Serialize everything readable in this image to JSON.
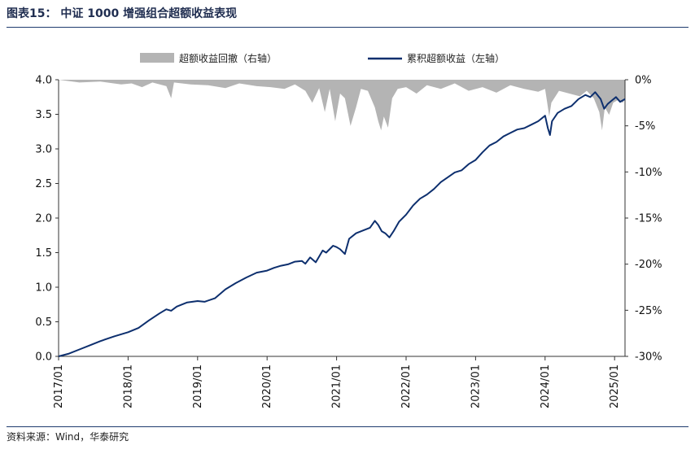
{
  "header": {
    "title": "图表15：  中证 1000 增强组合超额收益表现"
  },
  "footer": {
    "source": "资料来源：Wind，华泰研究"
  },
  "colors": {
    "line": "#0d2f6e",
    "drawdown": "#b4b4b4",
    "title": "#1f2d50",
    "rule": "#1f3a6e"
  },
  "chart_data": {
    "type": "line",
    "legend_placement": "top",
    "grid": false,
    "x_ticks": [
      "2017/01",
      "2018/01",
      "2019/01",
      "2020/01",
      "2021/01",
      "2022/01",
      "2023/01",
      "2024/01",
      "2025/01"
    ],
    "x_range": [
      2017.0,
      2025.15
    ],
    "y_left": {
      "ticks": [
        "0.0",
        "0.5",
        "1.0",
        "1.5",
        "2.0",
        "2.5",
        "3.0",
        "3.5",
        "4.0"
      ],
      "range": [
        0,
        4.0
      ]
    },
    "y_right": {
      "ticks": [
        "0%",
        "-5%",
        "-10%",
        "-15%",
        "-20%",
        "-25%",
        "-30%"
      ],
      "range": [
        -30,
        0
      ]
    },
    "series": [
      {
        "name": "超额收益回撤（右轴）",
        "kind": "area",
        "axis": "right",
        "points": [
          [
            2017.0,
            0
          ],
          [
            2017.3,
            -0.3
          ],
          [
            2017.6,
            -0.2
          ],
          [
            2017.9,
            -0.5
          ],
          [
            2018.05,
            -0.4
          ],
          [
            2018.2,
            -0.8
          ],
          [
            2018.35,
            -0.3
          ],
          [
            2018.55,
            -0.7
          ],
          [
            2018.62,
            -2.0
          ],
          [
            2018.66,
            -0.3
          ],
          [
            2018.9,
            -0.5
          ],
          [
            2019.15,
            -0.6
          ],
          [
            2019.4,
            -0.9
          ],
          [
            2019.6,
            -0.4
          ],
          [
            2019.85,
            -0.7
          ],
          [
            2020.05,
            -0.8
          ],
          [
            2020.25,
            -1.0
          ],
          [
            2020.4,
            -0.5
          ],
          [
            2020.55,
            -1.2
          ],
          [
            2020.65,
            -2.5
          ],
          [
            2020.75,
            -0.9
          ],
          [
            2020.83,
            -3.5
          ],
          [
            2020.9,
            -1.0
          ],
          [
            2020.98,
            -4.5
          ],
          [
            2021.05,
            -1.5
          ],
          [
            2021.12,
            -2.0
          ],
          [
            2021.2,
            -5.0
          ],
          [
            2021.28,
            -3.0
          ],
          [
            2021.35,
            -1.0
          ],
          [
            2021.45,
            -1.2
          ],
          [
            2021.55,
            -3.0
          ],
          [
            2021.6,
            -4.5
          ],
          [
            2021.64,
            -5.5
          ],
          [
            2021.68,
            -4.0
          ],
          [
            2021.74,
            -5.2
          ],
          [
            2021.8,
            -2.0
          ],
          [
            2021.88,
            -1.0
          ],
          [
            2022.0,
            -0.8
          ],
          [
            2022.15,
            -1.5
          ],
          [
            2022.3,
            -0.6
          ],
          [
            2022.5,
            -1.0
          ],
          [
            2022.7,
            -0.4
          ],
          [
            2022.9,
            -1.2
          ],
          [
            2023.1,
            -0.8
          ],
          [
            2023.3,
            -1.4
          ],
          [
            2023.5,
            -0.6
          ],
          [
            2023.7,
            -1.0
          ],
          [
            2023.9,
            -1.3
          ],
          [
            2024.0,
            -1.0
          ],
          [
            2024.03,
            -2.5
          ],
          [
            2024.06,
            -4.0
          ],
          [
            2024.09,
            -2.5
          ],
          [
            2024.2,
            -1.2
          ],
          [
            2024.35,
            -1.5
          ],
          [
            2024.5,
            -1.8
          ],
          [
            2024.6,
            -1.2
          ],
          [
            2024.7,
            -2.0
          ],
          [
            2024.78,
            -3.5
          ],
          [
            2024.82,
            -5.5
          ],
          [
            2024.86,
            -3.0
          ],
          [
            2024.92,
            -3.8
          ],
          [
            2024.98,
            -2.5
          ],
          [
            2025.05,
            -2.2
          ],
          [
            2025.12,
            -2.5
          ],
          [
            2025.15,
            -2.0
          ]
        ]
      },
      {
        "name": "累积超额收益（左轴）",
        "kind": "line",
        "axis": "left",
        "points": [
          [
            2017.0,
            0.0
          ],
          [
            2017.15,
            0.04
          ],
          [
            2017.3,
            0.1
          ],
          [
            2017.45,
            0.16
          ],
          [
            2017.6,
            0.22
          ],
          [
            2017.8,
            0.29
          ],
          [
            2018.0,
            0.35
          ],
          [
            2018.15,
            0.41
          ],
          [
            2018.3,
            0.52
          ],
          [
            2018.45,
            0.62
          ],
          [
            2018.55,
            0.68
          ],
          [
            2018.62,
            0.66
          ],
          [
            2018.7,
            0.72
          ],
          [
            2018.85,
            0.78
          ],
          [
            2019.0,
            0.8
          ],
          [
            2019.1,
            0.79
          ],
          [
            2019.25,
            0.84
          ],
          [
            2019.4,
            0.97
          ],
          [
            2019.55,
            1.06
          ],
          [
            2019.7,
            1.14
          ],
          [
            2019.85,
            1.21
          ],
          [
            2020.0,
            1.24
          ],
          [
            2020.1,
            1.28
          ],
          [
            2020.2,
            1.31
          ],
          [
            2020.3,
            1.33
          ],
          [
            2020.4,
            1.37
          ],
          [
            2020.5,
            1.38
          ],
          [
            2020.55,
            1.34
          ],
          [
            2020.62,
            1.43
          ],
          [
            2020.7,
            1.36
          ],
          [
            2020.8,
            1.53
          ],
          [
            2020.85,
            1.5
          ],
          [
            2020.95,
            1.6
          ],
          [
            2021.0,
            1.58
          ],
          [
            2021.05,
            1.55
          ],
          [
            2021.12,
            1.48
          ],
          [
            2021.18,
            1.7
          ],
          [
            2021.28,
            1.78
          ],
          [
            2021.38,
            1.82
          ],
          [
            2021.48,
            1.86
          ],
          [
            2021.55,
            1.96
          ],
          [
            2021.6,
            1.9
          ],
          [
            2021.65,
            1.81
          ],
          [
            2021.7,
            1.78
          ],
          [
            2021.76,
            1.72
          ],
          [
            2021.82,
            1.81
          ],
          [
            2021.9,
            1.95
          ],
          [
            2022.0,
            2.05
          ],
          [
            2022.1,
            2.18
          ],
          [
            2022.2,
            2.28
          ],
          [
            2022.3,
            2.34
          ],
          [
            2022.4,
            2.42
          ],
          [
            2022.5,
            2.52
          ],
          [
            2022.6,
            2.59
          ],
          [
            2022.7,
            2.66
          ],
          [
            2022.8,
            2.69
          ],
          [
            2022.9,
            2.78
          ],
          [
            2023.0,
            2.84
          ],
          [
            2023.1,
            2.95
          ],
          [
            2023.2,
            3.05
          ],
          [
            2023.3,
            3.1
          ],
          [
            2023.4,
            3.18
          ],
          [
            2023.5,
            3.23
          ],
          [
            2023.6,
            3.28
          ],
          [
            2023.7,
            3.3
          ],
          [
            2023.8,
            3.35
          ],
          [
            2023.9,
            3.4
          ],
          [
            2024.0,
            3.48
          ],
          [
            2024.04,
            3.3
          ],
          [
            2024.07,
            3.2
          ],
          [
            2024.1,
            3.4
          ],
          [
            2024.18,
            3.52
          ],
          [
            2024.28,
            3.58
          ],
          [
            2024.38,
            3.62
          ],
          [
            2024.48,
            3.72
          ],
          [
            2024.58,
            3.78
          ],
          [
            2024.65,
            3.75
          ],
          [
            2024.72,
            3.82
          ],
          [
            2024.8,
            3.72
          ],
          [
            2024.85,
            3.58
          ],
          [
            2024.9,
            3.65
          ],
          [
            2024.96,
            3.7
          ],
          [
            2025.02,
            3.75
          ],
          [
            2025.08,
            3.68
          ],
          [
            2025.15,
            3.72
          ]
        ]
      }
    ]
  }
}
